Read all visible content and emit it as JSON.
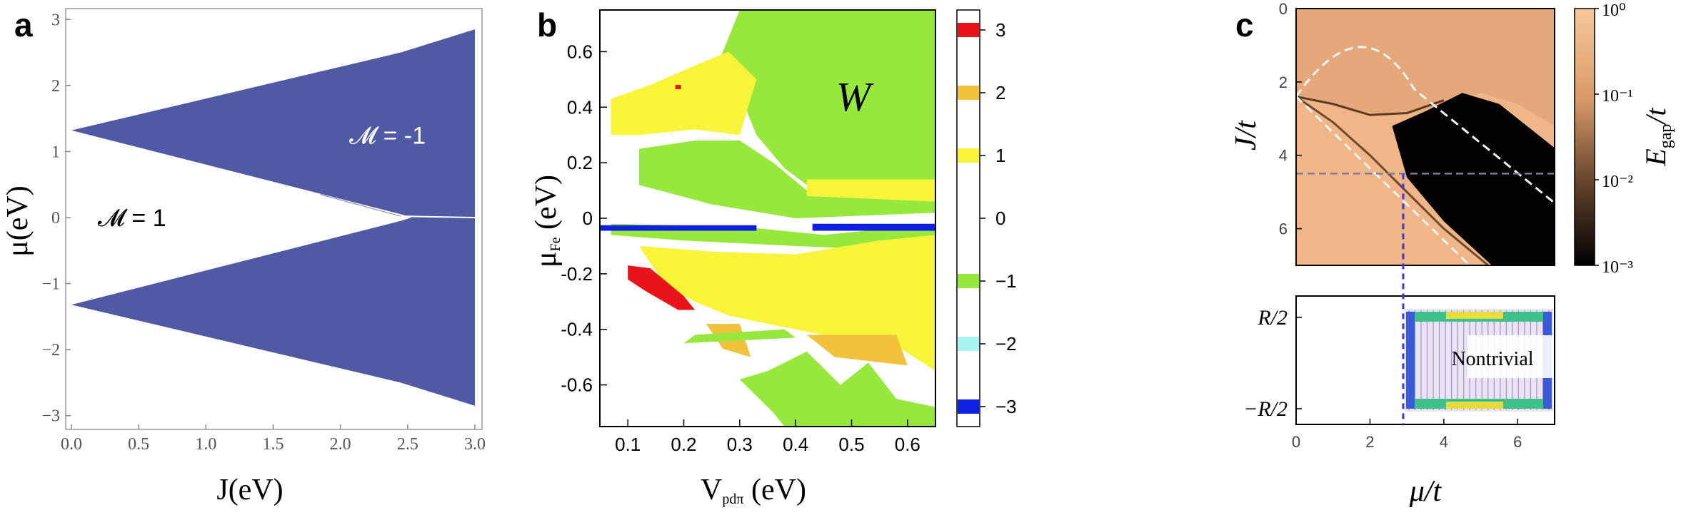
{
  "figure": {
    "panels": [
      "a",
      "b",
      "c"
    ]
  },
  "chart_data": [
    {
      "type": "area",
      "panel": "a",
      "xlabel": "J(eV)",
      "ylabel": "μ(eV)",
      "xlim": [
        0,
        3
      ],
      "ylim": [
        -3.1,
        3.1
      ],
      "xticks": [
        "0.0",
        "0.5",
        "1.0",
        "1.5",
        "2.0",
        "2.5",
        "3.0"
      ],
      "yticks": [
        "−3",
        "−2",
        "−1",
        "0",
        "1",
        "2",
        "3"
      ],
      "series": [
        {
          "name": "upper band (M = -1)",
          "x": [
            0.0,
            2.45,
            3.0
          ],
          "upper": [
            1.32,
            2.5,
            2.85
          ],
          "lower": [
            1.32,
            0.05,
            -0.3
          ],
          "color": "#5059a3"
        },
        {
          "name": "lower band",
          "x": [
            0.0,
            2.45,
            3.0
          ],
          "upper": [
            -1.32,
            -0.05,
            0.3
          ],
          "lower": [
            -1.32,
            -2.5,
            -2.85
          ],
          "color": "#5059a3"
        }
      ],
      "annotations": [
        {
          "text": "𝓜 = -1",
          "x": 2.35,
          "y": 1.25
        },
        {
          "text": "𝓜 = 1",
          "x": 0.45,
          "y": 0.0
        }
      ]
    },
    {
      "type": "heatmap",
      "panel": "b",
      "title_label": "W",
      "xlabel_main": "V",
      "xlabel_sub": "pdπ",
      "xlabel_unit": " (eV)",
      "ylabel_main": "μ",
      "ylabel_sub": "Fe",
      "ylabel_unit": " (eV)",
      "xlim": [
        0.05,
        0.65
      ],
      "ylim": [
        -0.75,
        0.75
      ],
      "xticks": [
        "0.1",
        "0.2",
        "0.3",
        "0.4",
        "0.5",
        "0.6"
      ],
      "yticks": [
        "0.6",
        "0.4",
        "0.2",
        "0",
        "-0.2",
        "-0.4",
        "-0.6"
      ],
      "colorbar": {
        "levels": [
          "3",
          "2",
          "1",
          "0",
          "−1",
          "−2",
          "−3"
        ],
        "colors": [
          "#e8141a",
          "#f2c23c",
          "#f8f43a",
          "#ffffff",
          "#96e83c",
          "#a8f4f2",
          "#1020e0"
        ]
      },
      "regions": [
        {
          "winding": 1,
          "color": "#f8f43a"
        },
        {
          "winding": 2,
          "color": "#f2c23c"
        },
        {
          "winding": 3,
          "color": "#e8141a"
        },
        {
          "winding": -1,
          "color": "#96e83c"
        },
        {
          "winding": -3,
          "color": "#1020e0"
        }
      ]
    },
    {
      "type": "heatmap",
      "panel": "c",
      "xlabel": "μ/t",
      "ylabel": "J/t",
      "xlim": [
        0,
        7
      ],
      "ylim": [
        0,
        7
      ],
      "xticks": [
        "0",
        "2",
        "4",
        "6"
      ],
      "yticks": [
        "0",
        "2",
        "4",
        "6"
      ],
      "colorbar": {
        "label": "E",
        "label_sub": "gap",
        "label_tail": "/t",
        "ticks": [
          "10⁰",
          "10⁻¹",
          "10⁻²",
          "10⁻³"
        ],
        "scale": "log",
        "range": [
          0.001,
          1
        ]
      },
      "dashed_horizontal_J": 4.5,
      "dashed_vertical_mu": 2.9,
      "inset": {
        "label": "Nontrivial",
        "yticks": [
          "R/2",
          "−R/2"
        ]
      }
    }
  ]
}
